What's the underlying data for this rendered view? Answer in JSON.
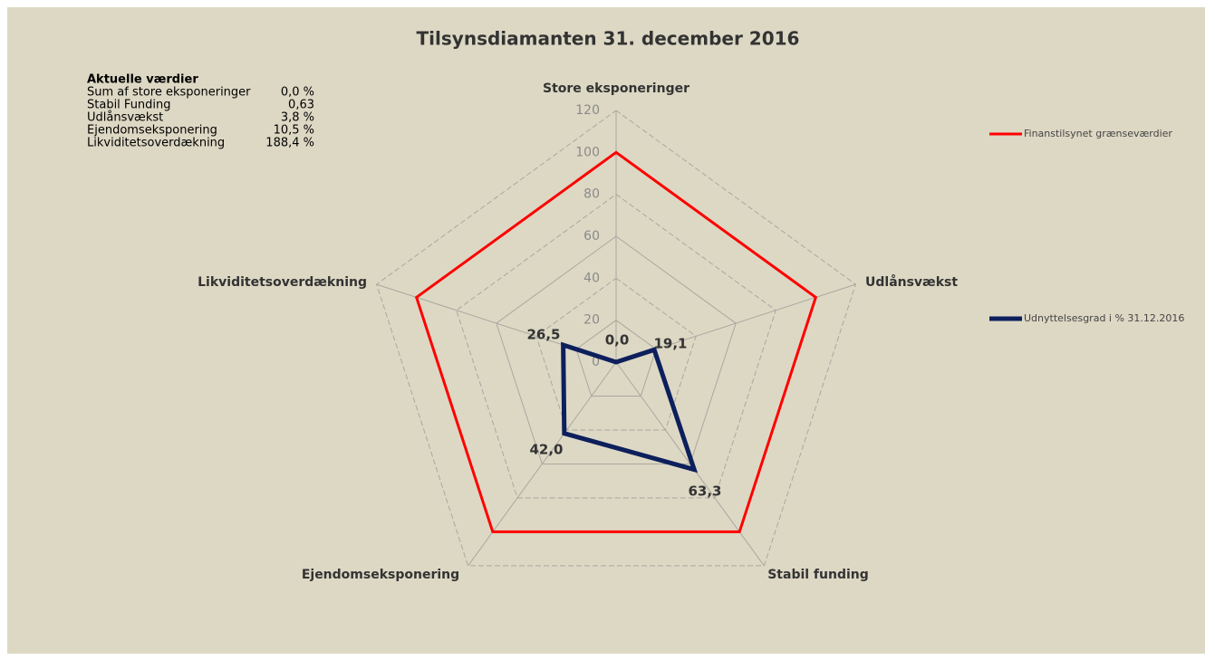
{
  "chart_data": {
    "type": "radar",
    "title": "Tilsynsdiamanten 31. december 2016",
    "categories": [
      "Store eksponeringer",
      "Udlånsvækst",
      "Stabil funding",
      "Ejendomseksponering",
      "Likviditetsoverdækning"
    ],
    "series": [
      {
        "name": "Finanstilsynet grænseværdier",
        "color": "#ff0000",
        "values": [
          100,
          100,
          100,
          100,
          100
        ]
      },
      {
        "name": "Udnyttelsesgrad i % 31.12.2016",
        "color": "#0d1f5c",
        "values": [
          0.0,
          19.1,
          63.3,
          42.0,
          26.5
        ],
        "value_labels": [
          "0,0",
          "19,1",
          "63,3",
          "42,0",
          "26,5"
        ]
      }
    ],
    "ylim": [
      0,
      120
    ],
    "yticks": [
      0,
      20,
      40,
      60,
      80,
      100,
      120
    ],
    "grid": true,
    "info_box": {
      "title": "Aktuelle værdier",
      "rows": [
        [
          "Sum af store eksponeringer",
          "0,0 %"
        ],
        [
          "Stabil Funding",
          "0,63"
        ],
        [
          "Udlånsvækst",
          "3,8 %"
        ],
        [
          "Ejendomseksponering",
          "10,5 %"
        ],
        [
          "Likviditetsoverdækning",
          "188,4 %"
        ]
      ]
    }
  }
}
